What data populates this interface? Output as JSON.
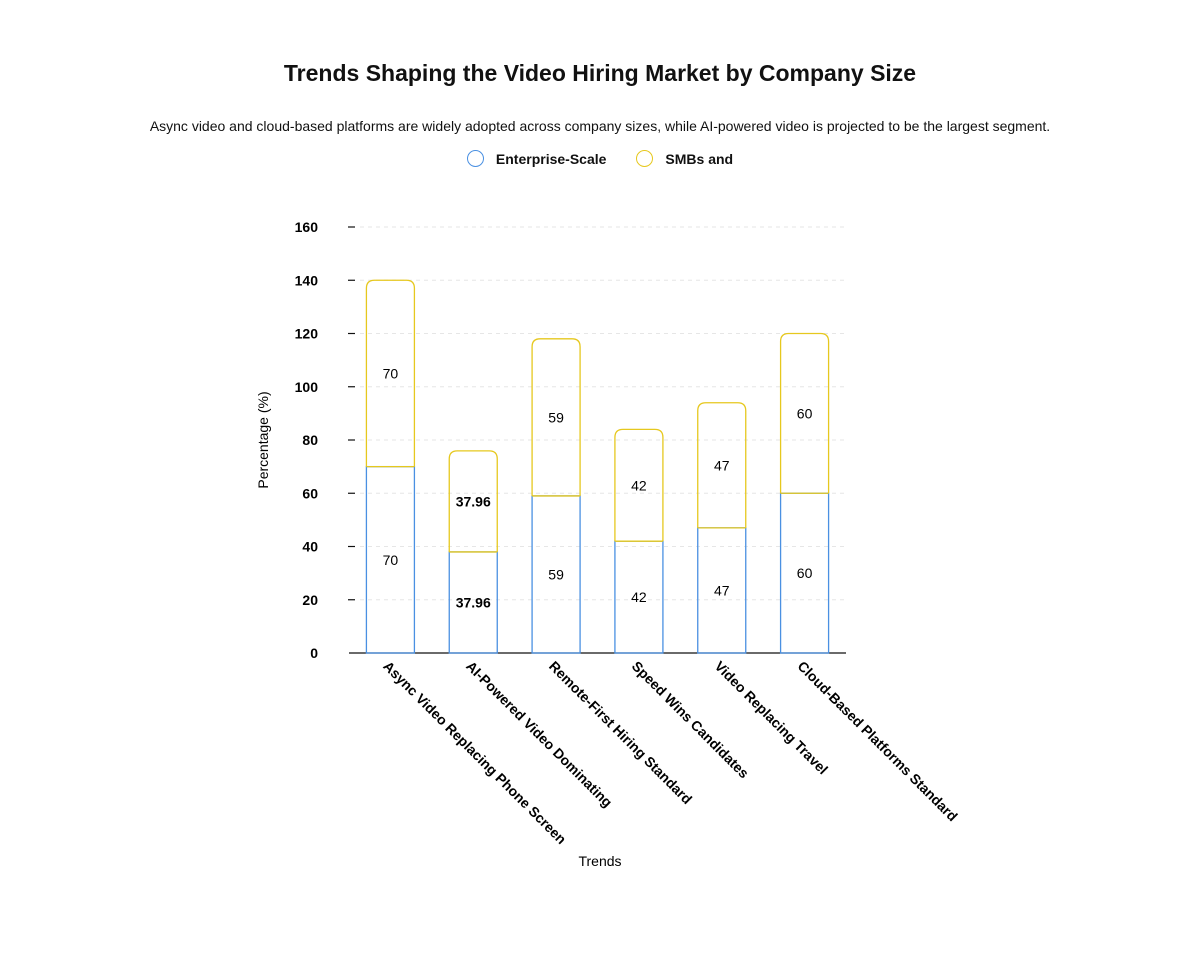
{
  "chart_data": {
    "type": "bar",
    "stacked": true,
    "title": "Trends Shaping the Video Hiring Market by Company Size",
    "subtitle": "Async video and cloud-based platforms are widely adopted across company sizes, while AI-powered video is projected to be the largest segment.",
    "xlabel": "Trends",
    "ylabel": "Percentage (%)",
    "ylim": [
      0,
      160
    ],
    "yticks": [
      0,
      20,
      40,
      60,
      80,
      100,
      120,
      140,
      160
    ],
    "grid": true,
    "legend_position": "top",
    "categories": [
      "Async Video Replacing Phone Screen",
      "AI-Powered Video Dominating",
      "Remote-First Hiring Standard",
      "Speed Wins Candidates",
      "Video Replacing Travel",
      "Cloud-Based Platforms Standard"
    ],
    "series": [
      {
        "name": "Enterprise-Scale",
        "color": "#4a90e2",
        "values": [
          70,
          37.96,
          59,
          42,
          47,
          60
        ]
      },
      {
        "name": "SMBs and",
        "color": "#e6c81e",
        "values": [
          70,
          37.96,
          59,
          42,
          47,
          60
        ]
      }
    ],
    "value_labels": {
      "Enterprise-Scale": [
        "70",
        "37.96",
        "59",
        "42",
        "47",
        "60"
      ],
      "SMBs and": [
        "70",
        "37.96",
        "59",
        "42",
        "47",
        "60"
      ]
    }
  }
}
